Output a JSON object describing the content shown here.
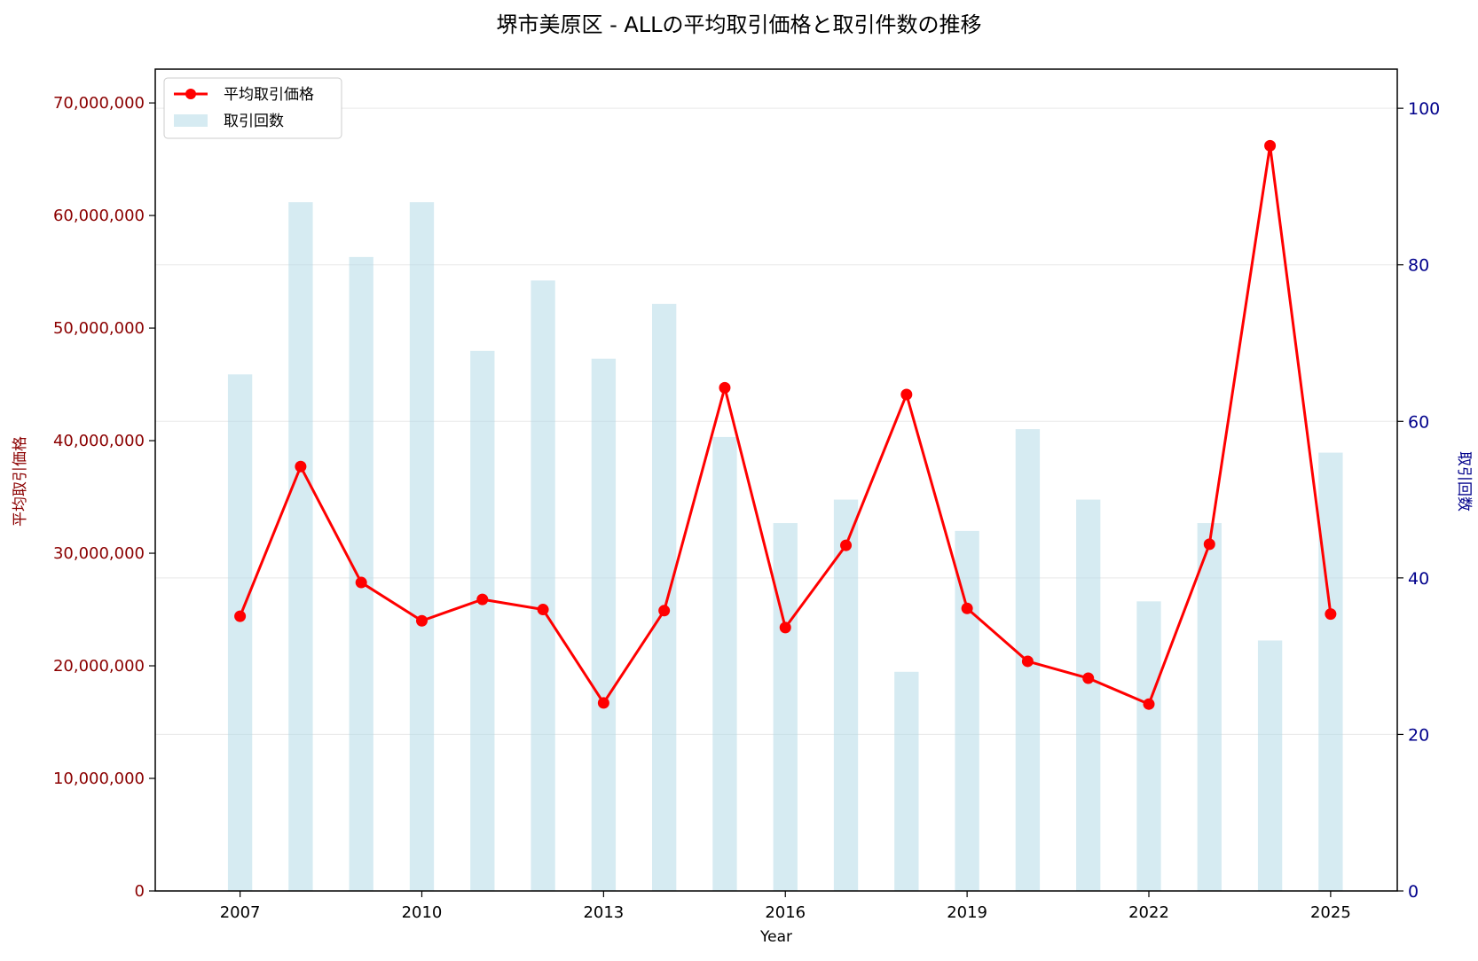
{
  "colors": {
    "line": "#ff0000",
    "bars": "#add8e6",
    "left_axis": "#8b0000",
    "right_axis": "#00008b",
    "grid": "#d9d9d9"
  },
  "chart_data": {
    "type": "bar+line",
    "title": "堺市美原区 - ALLの平均取引価格と取引件数の推移",
    "xlabel": "Year",
    "ylabel_left": "平均取引価格",
    "ylabel_right": "取引回数",
    "x_ticks": [
      "2007",
      "2010",
      "2013",
      "2016",
      "2019",
      "2022",
      "2025"
    ],
    "y_left_ticks": [
      "0",
      "10,000,000",
      "20,000,000",
      "30,000,000",
      "40,000,000",
      "50,000,000",
      "60,000,000",
      "70,000,000"
    ],
    "y_right_ticks": [
      "0",
      "20",
      "40",
      "60",
      "80",
      "100"
    ],
    "y_left_lim": [
      0,
      73000000
    ],
    "y_right_lim": [
      0,
      105
    ],
    "x_lim": [
      2005.6,
      2026.1
    ],
    "grid": true,
    "legend_position": "top-left",
    "legend": [
      "平均取引価格",
      "取引回数"
    ],
    "years": [
      2007,
      2008,
      2009,
      2010,
      2011,
      2012,
      2013,
      2014,
      2015,
      2016,
      2017,
      2018,
      2019,
      2020,
      2021,
      2022,
      2023,
      2024,
      2025
    ],
    "series": [
      {
        "name": "平均取引価格",
        "type": "line",
        "axis": "left",
        "values": [
          24400000,
          37700000,
          27400000,
          24000000,
          25900000,
          25000000,
          16700000,
          24900000,
          44700000,
          23400000,
          30700000,
          44100000,
          25100000,
          20400000,
          18900000,
          16600000,
          30800000,
          66200000,
          24600000
        ]
      },
      {
        "name": "取引回数",
        "type": "bar",
        "axis": "right",
        "values": [
          66,
          88,
          81,
          88,
          69,
          78,
          68,
          75,
          58,
          47,
          50,
          28,
          46,
          59,
          50,
          37,
          47,
          32,
          56
        ]
      }
    ]
  }
}
